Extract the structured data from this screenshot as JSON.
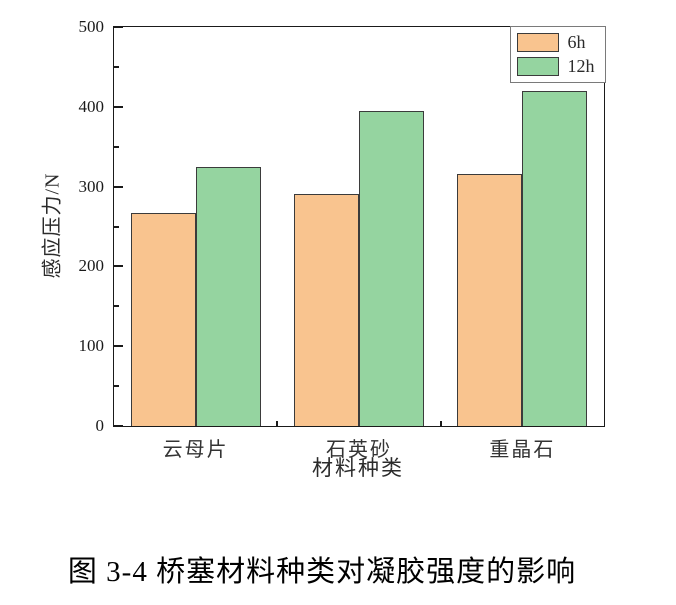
{
  "chart_data": {
    "type": "bar",
    "title": "",
    "xlabel": "材料种类",
    "ylabel": "感应压力/N",
    "categories": [
      "云母片",
      "石英砂",
      "重晶石"
    ],
    "series": [
      {
        "name": "6h",
        "color": "#F9C48F",
        "values": [
          267,
          291,
          316
        ]
      },
      {
        "name": "12h",
        "color": "#95D4A0",
        "values": [
          325,
          395,
          420
        ]
      }
    ],
    "ylim": [
      0,
      500
    ],
    "yticks": [
      0,
      100,
      200,
      300,
      400,
      500
    ],
    "y_minor_tick_step": 50,
    "grid": false,
    "legend_position": "top-right",
    "bar_edge_color": "#3b3b3b",
    "axis_color": "#1a1a1a"
  },
  "caption": {
    "text": "图 3-4 桥塞材料种类对凝胶强度的影响"
  }
}
